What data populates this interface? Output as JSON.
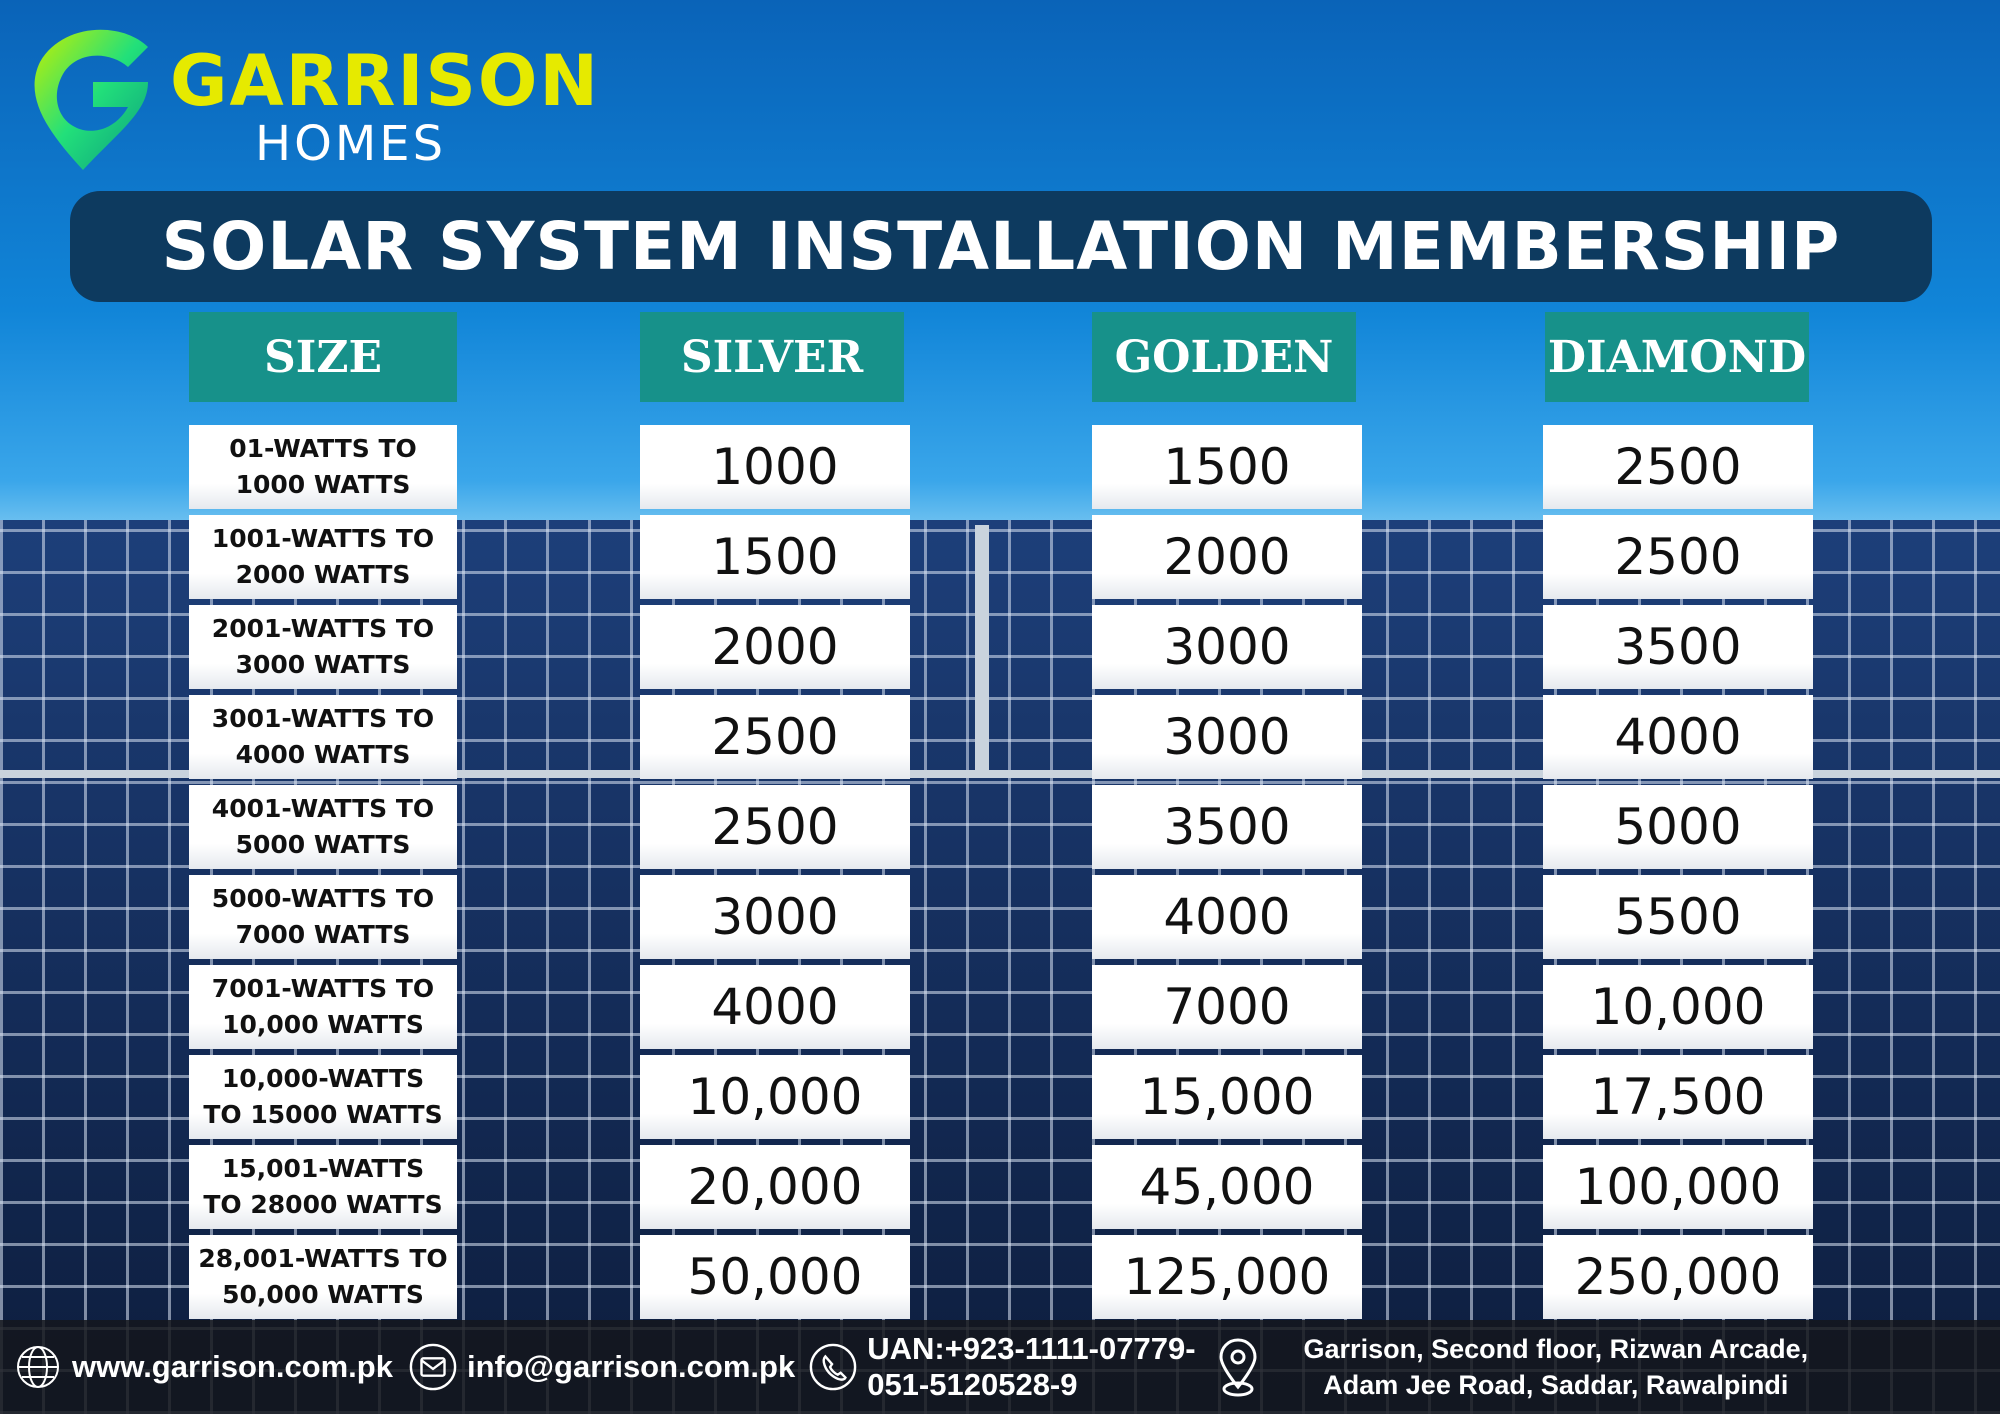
{
  "brand": {
    "name": "GARRISON",
    "sub": "HOMES"
  },
  "title": "SOLAR SYSTEM INSTALLATION MEMBERSHIP",
  "headers": [
    "SIZE",
    "SILVER",
    "GOLDEN",
    "DIAMOND"
  ],
  "rows": [
    {
      "size": [
        "01-WATTS TO",
        "1000 WATTS"
      ],
      "silver": "1000",
      "golden": "1500",
      "diamond": "2500"
    },
    {
      "size": [
        "1001-WATTS TO",
        "2000 WATTS"
      ],
      "silver": "1500",
      "golden": "2000",
      "diamond": "2500"
    },
    {
      "size": [
        "2001-WATTS TO",
        "3000 WATTS"
      ],
      "silver": "2000",
      "golden": "3000",
      "diamond": "3500"
    },
    {
      "size": [
        "3001-WATTS TO",
        "4000 WATTS"
      ],
      "silver": "2500",
      "golden": "3000",
      "diamond": "4000"
    },
    {
      "size": [
        "4001-WATTS TO",
        "5000 WATTS"
      ],
      "silver": "2500",
      "golden": "3500",
      "diamond": "5000"
    },
    {
      "size": [
        "5000-WATTS TO",
        "7000 WATTS"
      ],
      "silver": "3000",
      "golden": "4000",
      "diamond": "5500"
    },
    {
      "size": [
        "7001-WATTS TO",
        "10,000 WATTS"
      ],
      "silver": "4000",
      "golden": "7000",
      "diamond": "10,000"
    },
    {
      "size": [
        "10,000-WATTS",
        "TO 15000 WATTS"
      ],
      "silver": "10,000",
      "golden": "15,000",
      "diamond": "17,500"
    },
    {
      "size": [
        "15,001-WATTS",
        "TO 28000 WATTS"
      ],
      "silver": "20,000",
      "golden": "45,000",
      "diamond": "100,000"
    },
    {
      "size": [
        "28,001-WATTS TO",
        "50,000 WATTS"
      ],
      "silver": "50,000",
      "golden": "125,000",
      "diamond": "250,000"
    }
  ],
  "footer": {
    "website": "www.garrison.com.pk",
    "email": "info@garrison.com.pk",
    "phone1": "UAN:+923-1111-07779-",
    "phone2": "051-5120528-9",
    "address1": "Garrison, Second floor, Rizwan Arcade,",
    "address2": "Adam Jee Road, Saddar, Rawalpindi"
  },
  "colors": {
    "header": "#17918a",
    "title_bg": "#0d3a5f",
    "brand": "#e6ea00"
  }
}
